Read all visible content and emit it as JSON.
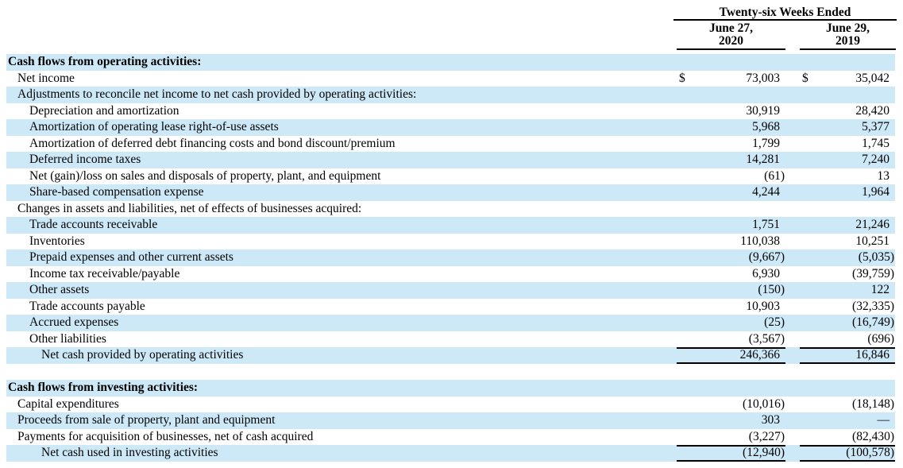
{
  "colors": {
    "row_shade": "#CDE9F8",
    "rule": "#000000",
    "text": "#000000"
  },
  "document": {
    "period_header": "Twenty-six Weeks Ended",
    "currency_symbol": "$",
    "columns": [
      {
        "line1": "June 27,",
        "line2": "2020"
      },
      {
        "line1": "June 29,",
        "line2": "2019"
      }
    ],
    "rows": [
      {
        "label": "Cash flows from operating activities:",
        "indent": 0,
        "bold": true,
        "shaded": true,
        "values": [
          "",
          ""
        ]
      },
      {
        "label": "Net income",
        "indent": 1,
        "shaded": false,
        "dollar": true,
        "values": [
          "73,003",
          "35,042"
        ]
      },
      {
        "label": "Adjustments to reconcile net income to net cash provided by operating activities:",
        "indent": 1,
        "shaded": true,
        "values": [
          "",
          ""
        ]
      },
      {
        "label": "Depreciation and amortization",
        "indent": 2,
        "shaded": false,
        "values": [
          "30,919",
          "28,420"
        ]
      },
      {
        "label": "Amortization of operating lease right-of-use assets",
        "indent": 2,
        "shaded": true,
        "values": [
          "5,968",
          "5,377"
        ]
      },
      {
        "label": "Amortization of deferred debt financing costs and bond discount/premium",
        "indent": 2,
        "shaded": false,
        "values": [
          "1,799",
          "1,745"
        ]
      },
      {
        "label": "Deferred income taxes",
        "indent": 2,
        "shaded": true,
        "values": [
          "14,281",
          "7,240"
        ]
      },
      {
        "label": "Net (gain)/loss on sales and disposals of property, plant, and equipment",
        "indent": 2,
        "shaded": false,
        "values": [
          "(61)",
          "13"
        ]
      },
      {
        "label": "Share-based compensation expense",
        "indent": 2,
        "shaded": true,
        "values": [
          "4,244",
          "1,964"
        ]
      },
      {
        "label": "Changes in assets and liabilities, net of effects of businesses acquired:",
        "indent": 1,
        "shaded": false,
        "values": [
          "",
          ""
        ]
      },
      {
        "label": "Trade accounts receivable",
        "indent": 2,
        "shaded": true,
        "values": [
          "1,751",
          "21,246"
        ]
      },
      {
        "label": "Inventories",
        "indent": 2,
        "shaded": false,
        "values": [
          "110,038",
          "10,251"
        ]
      },
      {
        "label": "Prepaid expenses and other current assets",
        "indent": 2,
        "shaded": true,
        "values": [
          "(9,667)",
          "(5,035)"
        ]
      },
      {
        "label": "Income tax receivable/payable",
        "indent": 2,
        "shaded": false,
        "values": [
          "6,930",
          "(39,759)"
        ]
      },
      {
        "label": "Other assets",
        "indent": 2,
        "shaded": true,
        "values": [
          "(150)",
          "122"
        ]
      },
      {
        "label": "Trade accounts payable",
        "indent": 2,
        "shaded": false,
        "values": [
          "10,903",
          "(32,335)"
        ]
      },
      {
        "label": "Accrued expenses",
        "indent": 2,
        "shaded": true,
        "values": [
          "(25)",
          "(16,749)"
        ]
      },
      {
        "label": "Other liabilities",
        "indent": 2,
        "shaded": false,
        "values": [
          "(3,567)",
          "(696)"
        ]
      },
      {
        "label": "Net cash provided by operating activities",
        "indent": 3,
        "shaded": true,
        "rule": "both",
        "values": [
          "246,366",
          "16,846"
        ]
      },
      {
        "spacer": true
      },
      {
        "label": "Cash flows from investing activities:",
        "indent": 0,
        "bold": true,
        "shaded": true,
        "values": [
          "",
          ""
        ]
      },
      {
        "label": "Capital expenditures",
        "indent": 1,
        "shaded": false,
        "values": [
          "(10,016)",
          "(18,148)"
        ]
      },
      {
        "label": "Proceeds from sale of property, plant and equipment",
        "indent": 1,
        "shaded": true,
        "values": [
          "303",
          "—"
        ]
      },
      {
        "label": "Payments for acquisition of businesses, net of cash acquired",
        "indent": 1,
        "shaded": false,
        "values": [
          "(3,227)",
          "(82,430)"
        ]
      },
      {
        "label": "Net cash used in investing activities",
        "indent": 3,
        "shaded": true,
        "rule": "both",
        "values": [
          "(12,940)",
          "(100,578)"
        ]
      }
    ]
  }
}
